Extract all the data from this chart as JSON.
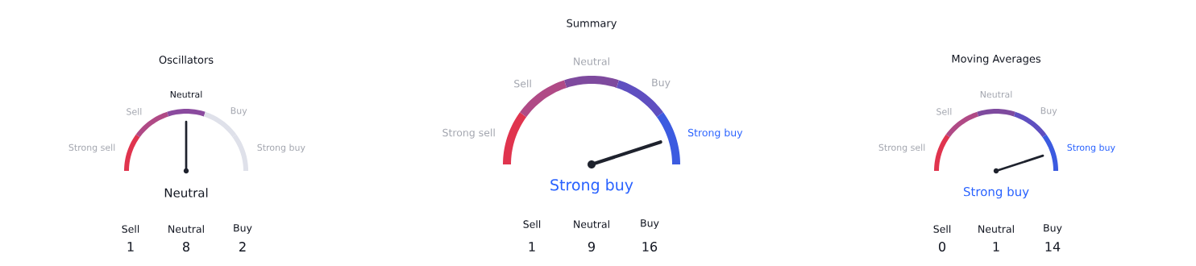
{
  "chart_data": [
    {
      "type": "donut",
      "title": "Oscillators",
      "categories": [
        "Strong sell",
        "Sell",
        "Neutral",
        "Buy",
        "Strong buy"
      ],
      "values": [
        20,
        20,
        20,
        20,
        20
      ],
      "colors": [
        "#e0344e",
        "#b04a86",
        "#8a4a9e",
        "#dfe1ea",
        "#dfe1ea"
      ],
      "needle": "Neutral",
      "annotations": [
        "Sell",
        "Neutral",
        "Buy",
        "1",
        "8",
        "2"
      ]
    },
    {
      "type": "donut",
      "title": "Summary",
      "categories": [
        "Strong sell",
        "Sell",
        "Neutral",
        "Buy",
        "Strong buy"
      ],
      "values": [
        20,
        20,
        20,
        20,
        20
      ],
      "colors": [
        "#e0344e",
        "#b04a86",
        "#7e4a9e",
        "#5f4fc0",
        "#3c5be0"
      ],
      "needle": "Strong buy",
      "annotations": [
        "Sell",
        "Neutral",
        "Buy",
        "1",
        "9",
        "16"
      ]
    },
    {
      "type": "donut",
      "title": "Moving Averages",
      "categories": [
        "Strong sell",
        "Sell",
        "Neutral",
        "Buy",
        "Strong buy"
      ],
      "values": [
        20,
        20,
        20,
        20,
        20
      ],
      "colors": [
        "#e0344e",
        "#b04a86",
        "#7e4a9e",
        "#5f4fc0",
        "#3c5be0"
      ],
      "needle": "Strong buy",
      "annotations": [
        "Sell",
        "Neutral",
        "Buy",
        "0",
        "1",
        "14"
      ]
    }
  ]
}
